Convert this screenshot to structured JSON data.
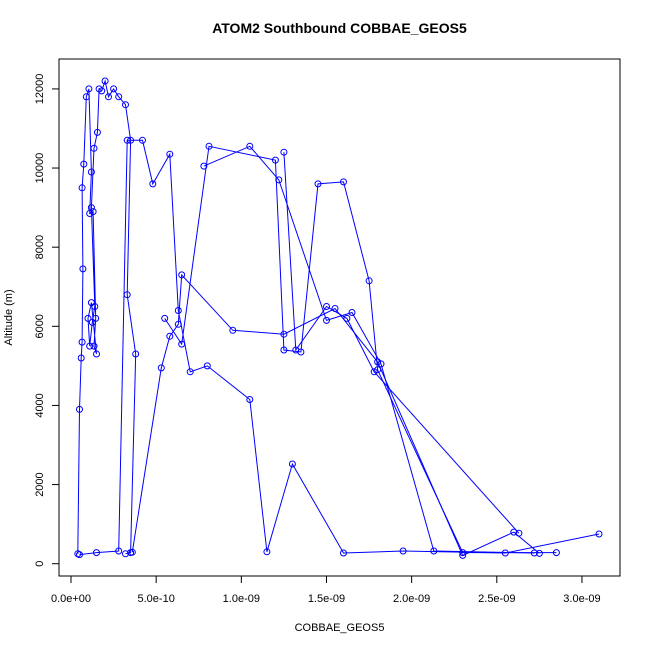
{
  "chart_data": {
    "type": "scatter",
    "title": "ATOM2 Southbound COBBAE_GEOS5",
    "xlabel": "COBBAE_GEOS5",
    "ylabel": "Altitude (m)",
    "xlim": [
      0,
      3.1e-09
    ],
    "ylim": [
      220,
      12200
    ],
    "x_ticks": [
      0,
      5e-10,
      1e-09,
      1.5e-09,
      2e-09,
      2.5e-09,
      3e-09
    ],
    "x_tick_labels": [
      "0.0e+00",
      "5.0e-10",
      "1.0e-09",
      "1.5e-09",
      "2.0e-09",
      "2.5e-09",
      "3.0e-09"
    ],
    "y_ticks": [
      0,
      2000,
      4000,
      6000,
      8000,
      10000,
      12000
    ],
    "y_tick_labels": [
      "0",
      "2000",
      "4000",
      "6000",
      "8000",
      "10000",
      "12000"
    ],
    "series_color": "#0000ff",
    "grid": false,
    "legend": "none",
    "series": [
      {
        "x": [
          4e-11,
          5e-11,
          6e-11,
          6.5e-11,
          7e-11,
          6.5e-11,
          7.5e-11,
          9e-11,
          1.05e-10,
          1.2e-10,
          1.1e-10,
          1.3e-10,
          1.45e-10,
          1.35e-10,
          1.5e-10,
          1.2e-10,
          1e-10,
          1.1e-10,
          1.25e-10,
          1.4e-10,
          1.2e-10,
          1.35e-10,
          1.55e-10,
          1.65e-10,
          1.8e-10,
          2e-10,
          2.2e-10,
          2.5e-10,
          2.8e-10,
          3.2e-10,
          3.5e-10,
          3.3e-10,
          3.8e-10,
          3.5e-10,
          3.2e-10
        ],
        "y": [
          250,
          3900,
          5200,
          5600,
          7450,
          9500,
          10100,
          11800,
          12000,
          9900,
          8850,
          8900,
          6200,
          5500,
          5300,
          6600,
          6200,
          5500,
          6100,
          6500,
          9000,
          10500,
          10900,
          12000,
          11950,
          12200,
          11800,
          12000,
          11800,
          11600,
          10700,
          6800,
          5300,
          280,
          250
        ]
      },
      {
        "x": [
          5e-11,
          1.5e-10,
          2.8e-10,
          3.3e-10,
          4.2e-10,
          4.8e-10,
          5.8e-10,
          6.3e-10,
          7e-10,
          8e-10,
          1.05e-09,
          1.15e-09,
          1.3e-09,
          1.6e-09,
          1.95e-09,
          2.55e-09,
          3.1e-09
        ],
        "y": [
          230,
          280,
          320,
          10700,
          10700,
          9600,
          10350,
          6400,
          4850,
          5000,
          4150,
          300,
          2520,
          270,
          320,
          270,
          750
        ]
      },
      {
        "x": [
          3.6e-10,
          5.3e-10,
          5.8e-10,
          6.3e-10,
          6.5e-10,
          9.5e-10,
          1.25e-09,
          1.55e-09,
          1.8e-09,
          2.3e-09,
          2.6e-09,
          2.75e-09
        ],
        "y": [
          290,
          4950,
          5750,
          6050,
          7300,
          5900,
          5800,
          6450,
          5100,
          210,
          800,
          260
        ]
      },
      {
        "x": [
          5.5e-10,
          6.5e-10,
          8.1e-10,
          1.2e-09,
          1.25e-09,
          1.35e-09,
          1.45e-09,
          1.6e-09,
          1.75e-09,
          1.8e-09,
          2.3e-09,
          2.85e-09
        ],
        "y": [
          6200,
          5550,
          10550,
          10200,
          5400,
          5350,
          9600,
          9650,
          7150,
          4900,
          280,
          280
        ]
      },
      {
        "x": [
          7.8e-10,
          1.05e-09,
          1.22e-09,
          1.5e-09,
          1.65e-09,
          1.82e-09,
          2.13e-09,
          2.72e-09
        ],
        "y": [
          10050,
          10550,
          9700,
          6150,
          6350,
          5050,
          320,
          270
        ]
      },
      {
        "x": [
          1.25e-09,
          1.32e-09,
          1.5e-09,
          1.62e-09,
          1.78e-09,
          2.63e-09
        ],
        "y": [
          10400,
          5400,
          6500,
          6200,
          4850,
          770
        ]
      }
    ]
  }
}
